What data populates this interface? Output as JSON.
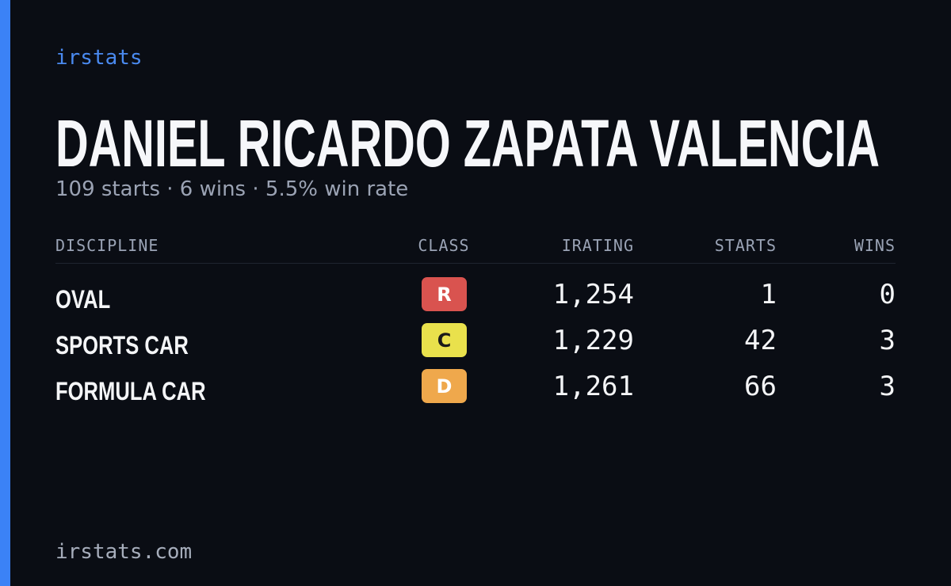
{
  "brand": "irstats",
  "driver": {
    "name": "DANIEL RICARDO ZAPATA VALENCIA",
    "summary": "109 starts · 6 wins · 5.5% win rate"
  },
  "table": {
    "headers": [
      "DISCIPLINE",
      "CLASS",
      "IRATING",
      "STARTS",
      "WINS"
    ],
    "rows": [
      [
        "OVAL",
        "R",
        "1,254",
        "1",
        "0"
      ],
      [
        "SPORTS CAR",
        "C",
        "1,229",
        "42",
        "3"
      ],
      [
        "FORMULA CAR",
        "D",
        "1,261",
        "66",
        "3"
      ]
    ]
  },
  "footer": "irstats.com"
}
